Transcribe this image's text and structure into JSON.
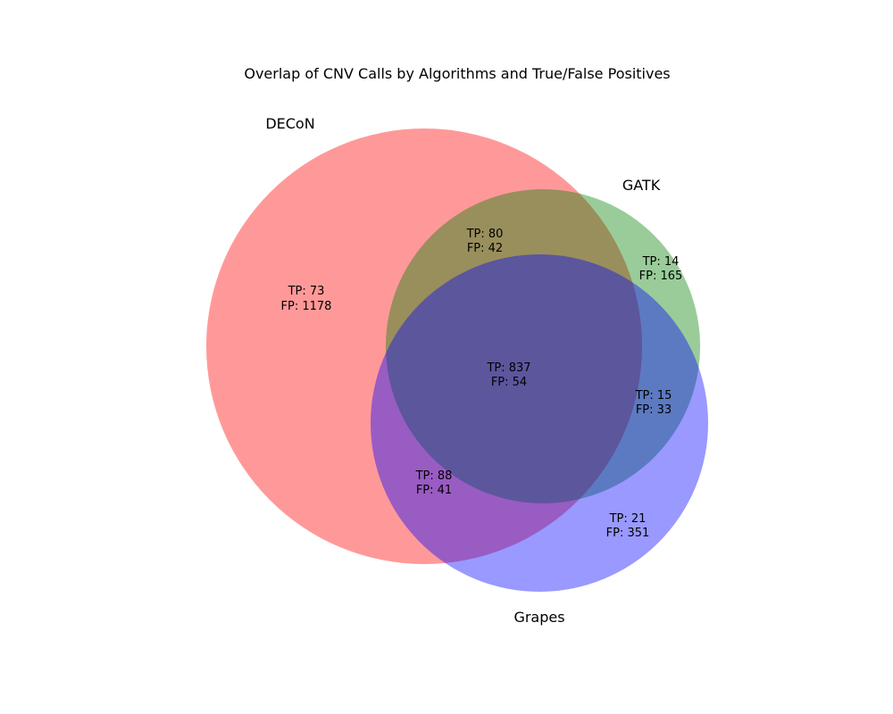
{
  "title": "Overlap of CNV Calls by Algorithms and True/False Positives",
  "sets": [
    {
      "id": "decon",
      "label": "DECoN",
      "color": "#ff0000"
    },
    {
      "id": "gatk",
      "label": "GATK",
      "color": "#008000"
    },
    {
      "id": "grapes",
      "label": "Grapes",
      "color": "#0000ff"
    }
  ],
  "regions": [
    {
      "id": "decon_only",
      "sets": [
        "DECoN"
      ],
      "tp_label": "TP: 73",
      "fp_label": "FP: 1178",
      "tp": 73,
      "fp": 1178
    },
    {
      "id": "gatk_only",
      "sets": [
        "GATK"
      ],
      "tp_label": "TP: 14",
      "fp_label": "FP: 165",
      "tp": 14,
      "fp": 165
    },
    {
      "id": "grapes_only",
      "sets": [
        "Grapes"
      ],
      "tp_label": "TP: 21",
      "fp_label": "FP: 351",
      "tp": 21,
      "fp": 351
    },
    {
      "id": "decon_gatk",
      "sets": [
        "DECoN",
        "GATK"
      ],
      "tp_label": "TP: 80",
      "fp_label": "FP: 42",
      "tp": 80,
      "fp": 42
    },
    {
      "id": "decon_grapes",
      "sets": [
        "DECoN",
        "Grapes"
      ],
      "tp_label": "TP: 88",
      "fp_label": "FP: 41",
      "tp": 88,
      "fp": 41
    },
    {
      "id": "gatk_grapes",
      "sets": [
        "GATK",
        "Grapes"
      ],
      "tp_label": "TP: 15",
      "fp_label": "FP: 33",
      "tp": 15,
      "fp": 33
    },
    {
      "id": "all_three",
      "sets": [
        "DECoN",
        "GATK",
        "Grapes"
      ],
      "tp_label": "TP: 837",
      "fp_label": "FP: 54",
      "tp": 837,
      "fp": 54
    }
  ]
}
